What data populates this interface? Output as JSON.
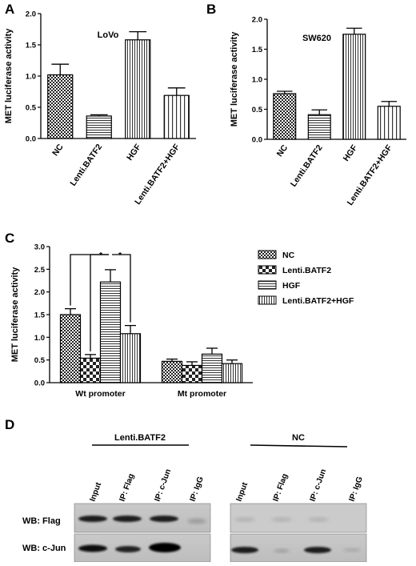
{
  "chart_data": [
    {
      "panel": "A",
      "type": "bar",
      "ylabel": "MET luciferase activity",
      "annotation": "LoVo",
      "categories": [
        "NC",
        "Lenti.BATF2",
        "HGF",
        "Lenti.BATF2+HGF"
      ],
      "values": [
        1.02,
        0.36,
        1.58,
        0.69
      ],
      "errors": [
        0.17,
        0.02,
        0.13,
        0.12
      ],
      "patterns": [
        "checker",
        "hlines",
        "vlines",
        "vlines-wide"
      ],
      "ylim": [
        0,
        2.0
      ],
      "yticks": [
        "0.0",
        "0.5",
        "1.0",
        "1.5",
        "2.0"
      ]
    },
    {
      "panel": "B",
      "type": "bar",
      "ylabel": "MET luciferase activity",
      "annotation": "SW620",
      "categories": [
        "NC",
        "Lenti.BATF2",
        "HGF",
        "Lenti.BATF2+HGF"
      ],
      "values": [
        0.76,
        0.41,
        1.75,
        0.55
      ],
      "errors": [
        0.04,
        0.08,
        0.1,
        0.08
      ],
      "patterns": [
        "checker",
        "hlines",
        "vlines",
        "vlines-wide"
      ],
      "ylim": [
        0,
        2.0
      ],
      "yticks": [
        "0.0",
        "0.5",
        "1.0",
        "1.5",
        "2.0"
      ]
    },
    {
      "panel": "C",
      "type": "bar",
      "ylabel": "MET luciferase activity",
      "categories": [
        "Wt promoter",
        "Mt promoter"
      ],
      "series": [
        {
          "name": "NC",
          "values": [
            1.5,
            0.47
          ],
          "errors": [
            0.13,
            0.05
          ],
          "pattern": "checker"
        },
        {
          "name": "Lenti.BATF2",
          "values": [
            0.54,
            0.38
          ],
          "errors": [
            0.08,
            0.08
          ],
          "pattern": "checker-coarse"
        },
        {
          "name": "HGF",
          "values": [
            2.22,
            0.63
          ],
          "errors": [
            0.27,
            0.13
          ],
          "pattern": "hlines"
        },
        {
          "name": "Lenti.BATF2+HGF",
          "values": [
            1.08,
            0.42
          ],
          "errors": [
            0.18,
            0.08
          ],
          "pattern": "vlines"
        }
      ],
      "significance": [
        "*",
        "*"
      ],
      "ylim": [
        0,
        3.0
      ],
      "yticks": [
        "0.0",
        "0.5",
        "1.0",
        "1.5",
        "2.0",
        "2.5",
        "3.0"
      ]
    }
  ],
  "panel_letters": {
    "a": "A",
    "b": "B",
    "c": "C",
    "d": "D"
  },
  "western_blot": {
    "groups": [
      "Lenti.BATF2",
      "NC"
    ],
    "lanes": [
      "Input",
      "IP: Flag",
      "IP: c-Jun",
      "IP: IgG"
    ],
    "rows": [
      "WB: Flag",
      "WB: c-Jun"
    ]
  }
}
